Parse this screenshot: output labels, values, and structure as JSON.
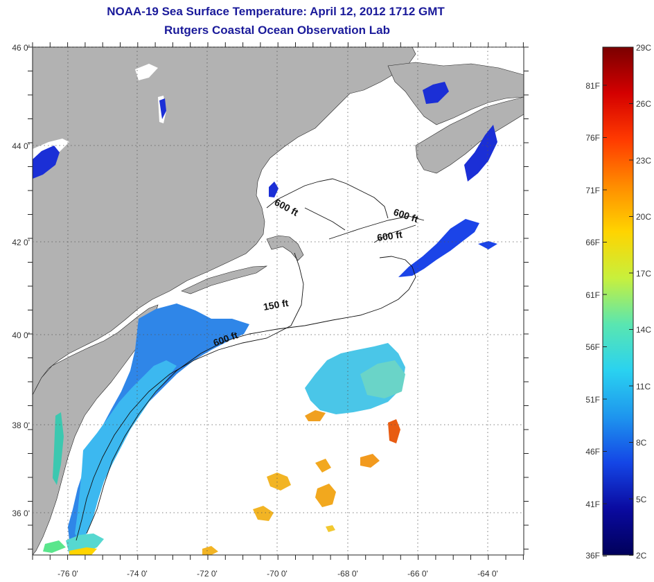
{
  "title": {
    "line1": "NOAA-19 Sea Surface Temperature:  April 12, 2012 1712 GMT",
    "line2": "Rutgers Coastal Ocean Observation Lab"
  },
  "map": {
    "lat_labels": [
      "46 0'",
      "44 0'",
      "42 0'",
      "40 0'",
      "38 0'",
      "36 0'"
    ],
    "lon_labels": [
      "-76 0'",
      "-74 0'",
      "-72 0'",
      "-70 0'",
      "-68 0'",
      "-66 0'",
      "-64 0'"
    ],
    "contour_labels": [
      "600 ft",
      "600 ft",
      "600 ft",
      "150 ft",
      "600 ft"
    ],
    "colors": {
      "land": "#b2b2b2",
      "ocean": "#ffffff",
      "grid": "#555555"
    }
  },
  "colorbar": {
    "celsius_labels": [
      "29C",
      "26C",
      "23C",
      "20C",
      "17C",
      "14C",
      "11C",
      "8C",
      "5C",
      "2C"
    ],
    "fahrenheit_labels": [
      "81F",
      "76F",
      "71F",
      "66F",
      "61F",
      "56F",
      "51F",
      "46F",
      "41F",
      "36F"
    ],
    "gradient": [
      "#7a0000",
      "#d40000",
      "#ff3a00",
      "#ff8c00",
      "#ffd400",
      "#c8f03c",
      "#5ae6b0",
      "#2ad2f0",
      "#1e96ee",
      "#1446e6",
      "#0a0aa0",
      "#00005a"
    ]
  }
}
